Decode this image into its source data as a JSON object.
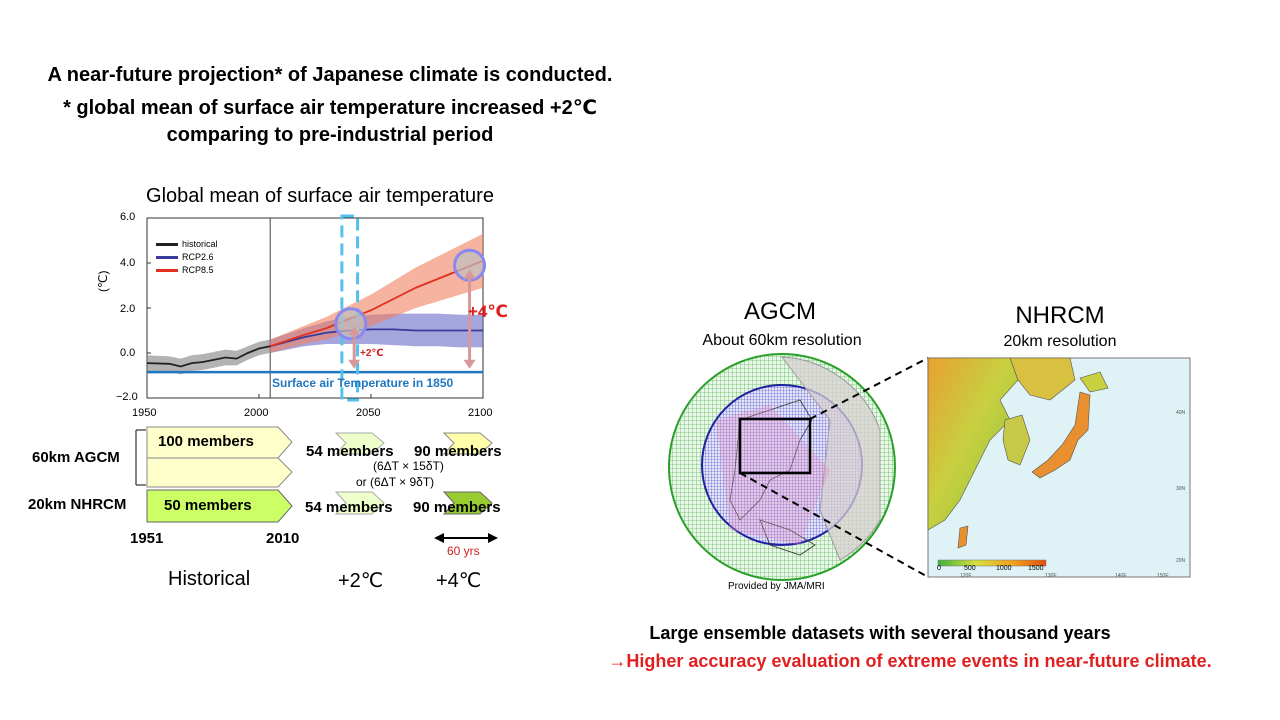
{
  "header": {
    "line1": "A near-future projection* of Japanese climate is conducted.",
    "line2": "* global mean of surface air temperature increased  +2℃",
    "line3": "comparing to pre-industrial period"
  },
  "chart_data": {
    "type": "line",
    "title": "Global mean of surface air temperature",
    "ylabel": "(℃)",
    "xlim": [
      1950,
      2100
    ],
    "ylim": [
      -2.0,
      6.0
    ],
    "xticks": [
      "1950",
      "2000",
      "2050",
      "2100"
    ],
    "yticks": [
      "6.0",
      "4.0",
      "2.0",
      "0.0",
      "−2.0"
    ],
    "legend_position": "top-left",
    "series": [
      {
        "name": "historical",
        "color": "#222222",
        "band_color": "#808080",
        "x": [
          1950,
          1960,
          1965,
          1970,
          1975,
          1980,
          1985,
          1990,
          1995,
          2000,
          2005
        ],
        "y": [
          -0.45,
          -0.48,
          -0.6,
          -0.45,
          -0.4,
          -0.3,
          -0.2,
          -0.25,
          0.0,
          0.2,
          0.3
        ],
        "lower": [
          -0.8,
          -0.8,
          -0.95,
          -0.8,
          -0.75,
          -0.65,
          -0.55,
          -0.55,
          -0.3,
          -0.1,
          0.0
        ],
        "upper": [
          -0.1,
          -0.15,
          -0.25,
          -0.1,
          -0.05,
          0.05,
          0.15,
          0.1,
          0.3,
          0.5,
          0.6
        ]
      },
      {
        "name": "RCP2.6",
        "color": "#3a3a9a",
        "band_color": "#6a6ac8",
        "x": [
          2005,
          2020,
          2030,
          2040,
          2050,
          2060,
          2070,
          2080,
          2090,
          2100
        ],
        "y": [
          0.3,
          0.7,
          0.9,
          1.0,
          1.05,
          1.05,
          1.0,
          1.0,
          1.0,
          1.0
        ],
        "lower": [
          0.0,
          0.3,
          0.4,
          0.4,
          0.4,
          0.35,
          0.3,
          0.3,
          0.25,
          0.25
        ],
        "upper": [
          0.6,
          1.1,
          1.4,
          1.6,
          1.7,
          1.75,
          1.75,
          1.75,
          1.7,
          1.7
        ]
      },
      {
        "name": "RCP8.5",
        "color": "#e03020",
        "band_color": "#f08060",
        "x": [
          2005,
          2020,
          2030,
          2040,
          2050,
          2060,
          2070,
          2080,
          2090,
          2100
        ],
        "y": [
          0.3,
          0.8,
          1.1,
          1.5,
          1.9,
          2.4,
          2.9,
          3.3,
          3.7,
          4.1
        ],
        "lower": [
          0.0,
          0.4,
          0.6,
          0.9,
          1.2,
          1.6,
          2.0,
          2.3,
          2.6,
          2.9
        ],
        "upper": [
          0.6,
          1.2,
          1.6,
          2.1,
          2.6,
          3.2,
          3.8,
          4.3,
          4.8,
          5.3
        ]
      }
    ],
    "baseline": {
      "value": -0.85,
      "label": "Surface air Temperature in 1850",
      "color": "#1f77c0"
    },
    "annotations": {
      "plus2": "+2℃",
      "plus4": "+4℃"
    },
    "markers": {
      "plus2_window": [
        2037,
        2044
      ],
      "plus2_circle": {
        "x": 2041,
        "y": 1.3
      },
      "plus4_circle": {
        "x": 2094,
        "y": 3.9
      }
    }
  },
  "ensemble": {
    "agcm_label": "60km AGCM",
    "nhrcm_label": "20km NHRCM",
    "agcm_historical": "100 members",
    "nhrcm_historical": "50 members",
    "agcm_plus2": "54 members",
    "agcm_plus2_note1": "(6ΔT × 15δT)",
    "agcm_plus2_note2": "or (6ΔT × 9δT)",
    "agcm_plus4": "90 members",
    "nhrcm_plus2": "54 members",
    "nhrcm_plus4": "90 members",
    "year_start": "1951",
    "year_end": "2010",
    "duration": "60 yrs",
    "period_historical": "Historical",
    "period_plus2": "+2℃",
    "period_plus4": "+4℃"
  },
  "models": {
    "agcm_title": "AGCM",
    "agcm_subtitle": "About 60km resolution",
    "nhrcm_title": "NHRCM",
    "nhrcm_subtitle": "20km resolution",
    "provider": "Provided by JMA/MRI",
    "colorbar_ticks": [
      "0",
      "500",
      "1000",
      "1500"
    ],
    "map_lon_ticks": [
      "120E",
      "130E",
      "140E",
      "150E"
    ],
    "map_lat_ticks": [
      "40N",
      "30N",
      "20N"
    ]
  },
  "footer": {
    "line1": "Large ensemble datasets with several thousand years",
    "line2": "→Higher accuracy evaluation of extreme events in near-future climate.",
    "line2_color": "#e02020"
  }
}
